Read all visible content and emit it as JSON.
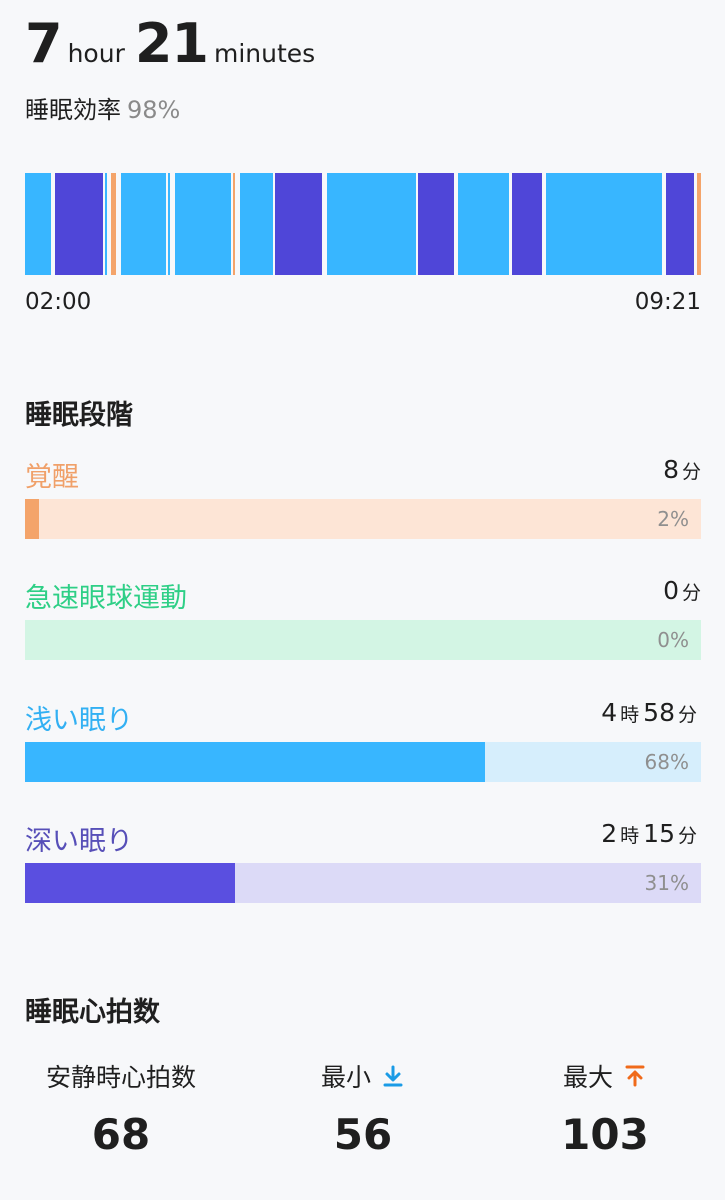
{
  "summary": {
    "hours": "7",
    "hours_unit": "hour",
    "minutes": "21",
    "minutes_unit": "minutes",
    "efficiency_label": "睡眠効率",
    "efficiency_value": "98%"
  },
  "hypnogram": {
    "start_time": "02:00",
    "end_time": "09:21",
    "colors": {
      "awake": "#f4a46a",
      "light": "#38b6ff",
      "deep": "#4f46d8"
    },
    "segments": [
      {
        "stage": "light",
        "from": 0.0,
        "to": 0.038
      },
      {
        "stage": "deep",
        "from": 0.044,
        "to": 0.115
      },
      {
        "stage": "light",
        "from": 0.118,
        "to": 0.12
      },
      {
        "stage": "awake",
        "from": 0.127,
        "to": 0.135
      },
      {
        "stage": "light",
        "from": 0.142,
        "to": 0.208
      },
      {
        "stage": "light",
        "from": 0.212,
        "to": 0.215
      },
      {
        "stage": "light",
        "from": 0.222,
        "to": 0.305
      },
      {
        "stage": "awake",
        "from": 0.308,
        "to": 0.311
      },
      {
        "stage": "light",
        "from": 0.318,
        "to": 0.367
      },
      {
        "stage": "deep",
        "from": 0.37,
        "to": 0.44
      },
      {
        "stage": "light",
        "from": 0.447,
        "to": 0.578
      },
      {
        "stage": "deep",
        "from": 0.582,
        "to": 0.635
      },
      {
        "stage": "light",
        "from": 0.641,
        "to": 0.716
      },
      {
        "stage": "deep",
        "from": 0.72,
        "to": 0.765
      },
      {
        "stage": "light",
        "from": 0.771,
        "to": 0.942
      },
      {
        "stage": "deep",
        "from": 0.948,
        "to": 0.99
      },
      {
        "stage": "awake",
        "from": 0.994,
        "to": 1.0
      }
    ]
  },
  "stages_section": {
    "title": "睡眠段階",
    "stages": [
      {
        "name": "覚醒",
        "dur_a": "8",
        "unit_a": "分",
        "dur_b": "",
        "unit_b": "",
        "percent": "2%",
        "fraction": 0.02,
        "color": "#f4a46a",
        "track": "#fde5d6",
        "name_color": "#f0a069"
      },
      {
        "name": "急速眼球運動",
        "dur_a": "0",
        "unit_a": "分",
        "dur_b": "",
        "unit_b": "",
        "percent": "0%",
        "fraction": 0.0,
        "color": "#2ecf86",
        "track": "#d3f5e4",
        "name_color": "#2ecf86"
      },
      {
        "name": "浅い眠り",
        "dur_a": "4",
        "unit_a": "時",
        "dur_b": "58",
        "unit_b": "分",
        "percent": "68%",
        "fraction": 0.68,
        "color": "#38b6ff",
        "track": "#d6eefc",
        "name_color": "#32b0f3"
      },
      {
        "name": "深い眠り",
        "dur_a": "2",
        "unit_a": "時",
        "dur_b": "15",
        "unit_b": "分",
        "percent": "31%",
        "fraction": 0.31,
        "color": "#5a4fe0",
        "track": "#dcdaf7",
        "name_color": "#574fb8"
      }
    ]
  },
  "heart_section": {
    "title": "睡眠心拍数",
    "resting_label": "安静時心拍数",
    "resting_value": "68",
    "min_label": "最小",
    "min_value": "56",
    "max_label": "最大",
    "max_value": "103",
    "min_icon": "arrow-down-to-line-icon",
    "max_icon": "arrow-up-to-line-icon",
    "min_color": "#1a9be6",
    "max_color": "#f06a1a"
  }
}
